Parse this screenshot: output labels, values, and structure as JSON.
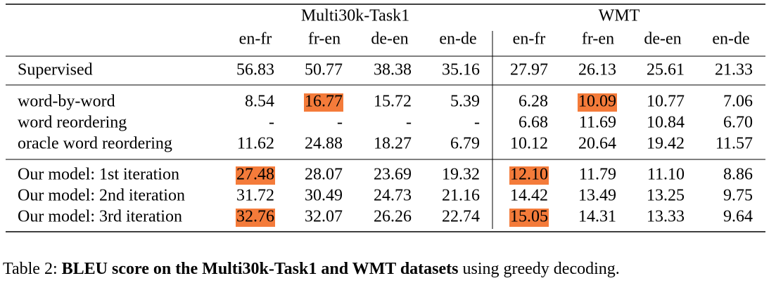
{
  "table": {
    "groups": [
      "Multi30k-Task1",
      "WMT"
    ],
    "columns": [
      "en-fr",
      "fr-en",
      "de-en",
      "en-de",
      "en-fr",
      "fr-en",
      "de-en",
      "en-de"
    ],
    "highlight_color": "#f47b3a",
    "sections": [
      [
        {
          "label": "Supervised",
          "cells": [
            "56.83",
            "50.77",
            "38.38",
            "35.16",
            "27.97",
            "26.13",
            "25.61",
            "21.33"
          ]
        }
      ],
      [
        {
          "label": "word-by-word",
          "cells": [
            "8.54",
            "16.77",
            "15.72",
            "5.39",
            "6.28",
            "10.09",
            "10.77",
            "7.06"
          ],
          "highlight": [
            1,
            5
          ]
        },
        {
          "label": "word reordering",
          "cells": [
            "-",
            "-",
            "-",
            "-",
            "6.68",
            "11.69",
            "10.84",
            "6.70"
          ]
        },
        {
          "label": "oracle word reordering",
          "cells": [
            "11.62",
            "24.88",
            "18.27",
            "6.79",
            "10.12",
            "20.64",
            "19.42",
            "11.57"
          ]
        }
      ],
      [
        {
          "label": "Our model: 1st iteration",
          "cells": [
            "27.48",
            "28.07",
            "23.69",
            "19.32",
            "12.10",
            "11.79",
            "11.10",
            "8.86"
          ],
          "highlight": [
            0,
            4
          ]
        },
        {
          "label": "Our model: 2nd iteration",
          "cells": [
            "31.72",
            "30.49",
            "24.73",
            "21.16",
            "14.42",
            "13.49",
            "13.25",
            "9.75"
          ]
        },
        {
          "label": "Our model: 3rd iteration",
          "cells": [
            "32.76",
            "32.07",
            "26.26",
            "22.74",
            "15.05",
            "14.31",
            "13.33",
            "9.64"
          ],
          "highlight": [
            0,
            4
          ]
        }
      ]
    ]
  },
  "caption": {
    "label": "Table 2:",
    "bold": "BLEU score on the Multi30k-Task1 and WMT datasets",
    "rest": "using greedy decoding."
  }
}
